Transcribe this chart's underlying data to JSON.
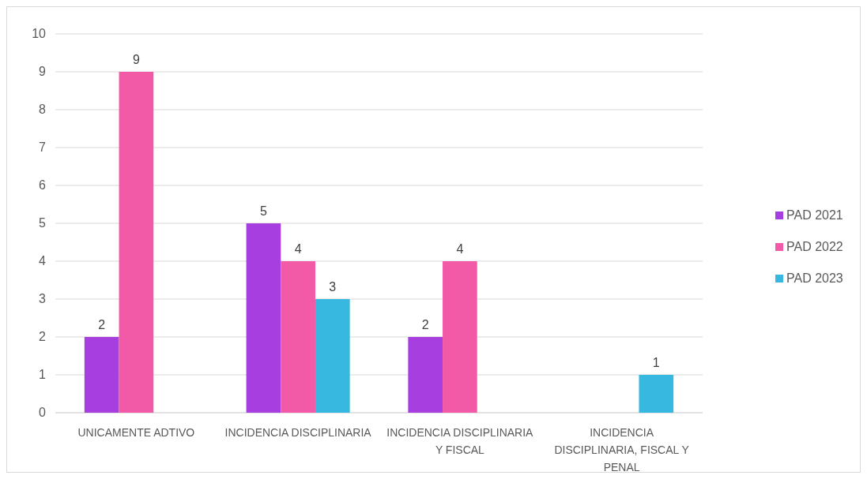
{
  "chart_data": {
    "type": "bar",
    "categories": [
      "UNICAMENTE ADTIVO",
      "INCIDENCIA DISCIPLINARIA",
      "INCIDENCIA DISCIPLINARIA Y FISCAL",
      "INCIDENCIA DISCIPLINARIA, FISCAL Y PENAL"
    ],
    "series": [
      {
        "name": "PAD 2021",
        "color": "#a63ee0",
        "values": [
          2,
          5,
          2,
          null
        ]
      },
      {
        "name": "PAD 2022",
        "color": "#f25aa8",
        "values": [
          9,
          4,
          4,
          null
        ]
      },
      {
        "name": "PAD 2023",
        "color": "#36b8e0",
        "values": [
          null,
          3,
          null,
          1
        ]
      }
    ],
    "ylim": [
      0,
      10
    ],
    "yticks": [
      0,
      1,
      2,
      3,
      4,
      5,
      6,
      7,
      8,
      9,
      10
    ],
    "grid": "y",
    "legend": "right",
    "data_labels": true
  }
}
